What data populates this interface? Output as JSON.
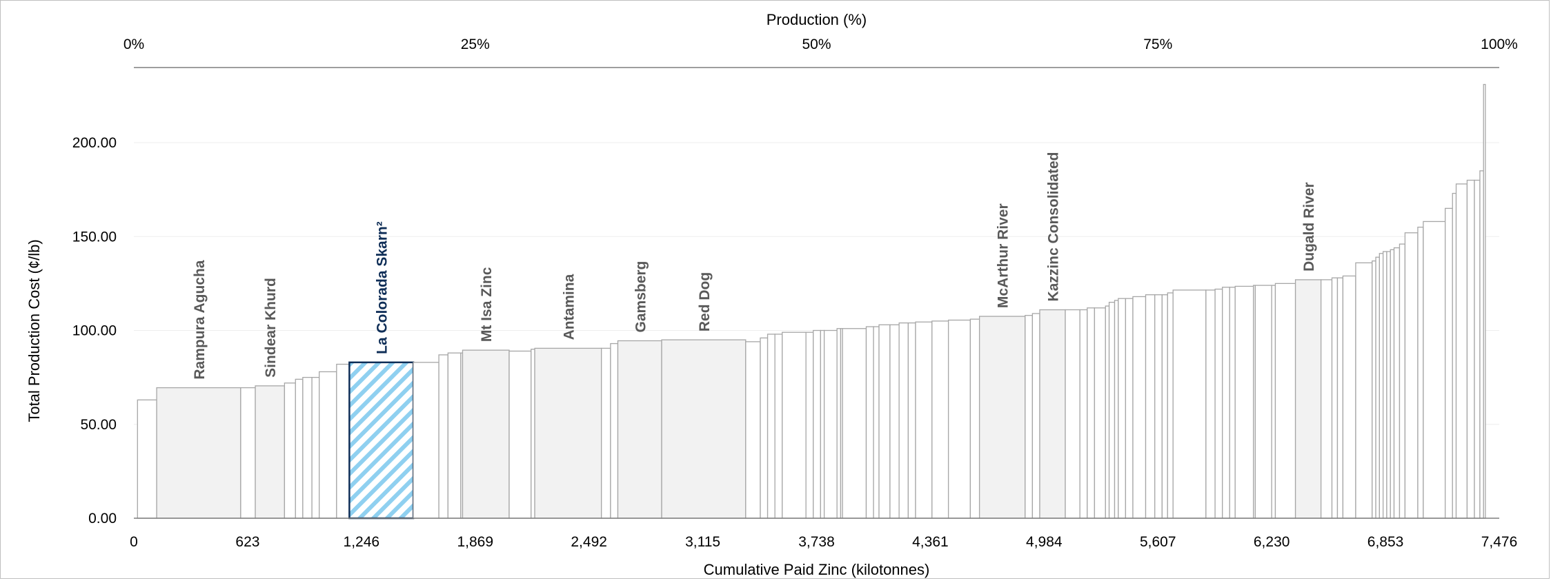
{
  "chart_data": {
    "type": "cost-curve",
    "title": "",
    "xlabel": "Cumulative Paid Zinc (kilotonnes)",
    "ylabel": "Total Production Cost (¢/lb)",
    "x2label": "Production (%)",
    "xlim": [
      0,
      7476
    ],
    "ylim": [
      0,
      240
    ],
    "x_ticks": [
      "0",
      "623",
      "1,246",
      "1,869",
      "2,492",
      "3,115",
      "3,738",
      "4,361",
      "4,984",
      "5,607",
      "6,230",
      "6,853",
      "7,476"
    ],
    "x_tick_values": [
      0,
      623,
      1246,
      1869,
      2492,
      3115,
      3738,
      4361,
      4984,
      5607,
      6230,
      6853,
      7476
    ],
    "y_ticks": [
      "0.00",
      "50.00",
      "100.00",
      "150.00",
      "200.00"
    ],
    "y_tick_values": [
      0,
      50,
      100,
      150,
      200
    ],
    "x2_ticks": [
      "0%",
      "25%",
      "50%",
      "75%",
      "100%"
    ],
    "x2_tick_values": [
      0,
      1869,
      3738,
      5607,
      7476
    ],
    "colors": {
      "bar_edge": "#a6a6a6",
      "bar_fill": "#ffffff",
      "named_fill": "#f2f2f2",
      "highlight_edge": "#0f2e57",
      "highlight_stripe": "#8fd0f0",
      "grid": "#ededed"
    },
    "bars": [
      {
        "start": 20,
        "end": 125,
        "cost": 63
      },
      {
        "start": 125,
        "end": 585,
        "cost": 69.5,
        "label": "Rampura Agucha"
      },
      {
        "start": 585,
        "end": 665,
        "cost": 69.5
      },
      {
        "start": 665,
        "end": 825,
        "cost": 70.5,
        "label": "Sindear Khurd"
      },
      {
        "start": 825,
        "end": 885,
        "cost": 72
      },
      {
        "start": 885,
        "end": 925,
        "cost": 74
      },
      {
        "start": 925,
        "end": 975,
        "cost": 75
      },
      {
        "start": 975,
        "end": 1015,
        "cost": 75
      },
      {
        "start": 1015,
        "end": 1110,
        "cost": 78
      },
      {
        "start": 1110,
        "end": 1180,
        "cost": 82
      },
      {
        "start": 1180,
        "end": 1530,
        "cost": 83,
        "label": "La Colorada Skarn²",
        "highlight": true
      },
      {
        "start": 1530,
        "end": 1670,
        "cost": 83
      },
      {
        "start": 1670,
        "end": 1720,
        "cost": 87
      },
      {
        "start": 1720,
        "end": 1790,
        "cost": 88
      },
      {
        "start": 1790,
        "end": 1800,
        "cost": 88
      },
      {
        "start": 1800,
        "end": 2055,
        "cost": 89.5,
        "label": "Mt Isa Zinc"
      },
      {
        "start": 2055,
        "end": 2175,
        "cost": 89
      },
      {
        "start": 2175,
        "end": 2195,
        "cost": 90
      },
      {
        "start": 2195,
        "end": 2560,
        "cost": 90.5,
        "label": "Antamina"
      },
      {
        "start": 2560,
        "end": 2610,
        "cost": 90.5
      },
      {
        "start": 2610,
        "end": 2650,
        "cost": 93
      },
      {
        "start": 2650,
        "end": 2890,
        "cost": 94.5,
        "label": "Gamsberg"
      },
      {
        "start": 2890,
        "end": 3350,
        "cost": 95,
        "label": "Red Dog"
      },
      {
        "start": 3350,
        "end": 3430,
        "cost": 94
      },
      {
        "start": 3430,
        "end": 3470,
        "cost": 96
      },
      {
        "start": 3470,
        "end": 3510,
        "cost": 98
      },
      {
        "start": 3510,
        "end": 3550,
        "cost": 98
      },
      {
        "start": 3550,
        "end": 3680,
        "cost": 99
      },
      {
        "start": 3680,
        "end": 3720,
        "cost": 99
      },
      {
        "start": 3720,
        "end": 3760,
        "cost": 100
      },
      {
        "start": 3760,
        "end": 3780,
        "cost": 100
      },
      {
        "start": 3780,
        "end": 3850,
        "cost": 100
      },
      {
        "start": 3850,
        "end": 3870,
        "cost": 101
      },
      {
        "start": 3870,
        "end": 3880,
        "cost": 101
      },
      {
        "start": 3880,
        "end": 4010,
        "cost": 101
      },
      {
        "start": 4010,
        "end": 4050,
        "cost": 102
      },
      {
        "start": 4050,
        "end": 4080,
        "cost": 102
      },
      {
        "start": 4080,
        "end": 4140,
        "cost": 103
      },
      {
        "start": 4140,
        "end": 4190,
        "cost": 103
      },
      {
        "start": 4190,
        "end": 4240,
        "cost": 104
      },
      {
        "start": 4240,
        "end": 4280,
        "cost": 104
      },
      {
        "start": 4280,
        "end": 4370,
        "cost": 104.5
      },
      {
        "start": 4370,
        "end": 4460,
        "cost": 105
      },
      {
        "start": 4460,
        "end": 4580,
        "cost": 105.5
      },
      {
        "start": 4580,
        "end": 4630,
        "cost": 106
      },
      {
        "start": 4630,
        "end": 4880,
        "cost": 107.5,
        "label": "McArthur River"
      },
      {
        "start": 4880,
        "end": 4920,
        "cost": 108
      },
      {
        "start": 4920,
        "end": 4960,
        "cost": 109
      },
      {
        "start": 4960,
        "end": 5100,
        "cost": 111,
        "label": "Kazzinc Consolidated"
      },
      {
        "start": 5100,
        "end": 5180,
        "cost": 111
      },
      {
        "start": 5180,
        "end": 5220,
        "cost": 111
      },
      {
        "start": 5220,
        "end": 5260,
        "cost": 112
      },
      {
        "start": 5260,
        "end": 5320,
        "cost": 112
      },
      {
        "start": 5320,
        "end": 5340,
        "cost": 113
      },
      {
        "start": 5340,
        "end": 5370,
        "cost": 115
      },
      {
        "start": 5370,
        "end": 5390,
        "cost": 116
      },
      {
        "start": 5390,
        "end": 5430,
        "cost": 117
      },
      {
        "start": 5430,
        "end": 5470,
        "cost": 117
      },
      {
        "start": 5470,
        "end": 5540,
        "cost": 118
      },
      {
        "start": 5540,
        "end": 5590,
        "cost": 119
      },
      {
        "start": 5590,
        "end": 5630,
        "cost": 119
      },
      {
        "start": 5630,
        "end": 5660,
        "cost": 119
      },
      {
        "start": 5660,
        "end": 5690,
        "cost": 120
      },
      {
        "start": 5690,
        "end": 5870,
        "cost": 121.5
      },
      {
        "start": 5870,
        "end": 5920,
        "cost": 121.5
      },
      {
        "start": 5920,
        "end": 5960,
        "cost": 122
      },
      {
        "start": 5960,
        "end": 6000,
        "cost": 123
      },
      {
        "start": 6000,
        "end": 6030,
        "cost": 123
      },
      {
        "start": 6030,
        "end": 6130,
        "cost": 123.5
      },
      {
        "start": 6130,
        "end": 6140,
        "cost": 124
      },
      {
        "start": 6140,
        "end": 6230,
        "cost": 124
      },
      {
        "start": 6230,
        "end": 6250,
        "cost": 124
      },
      {
        "start": 6250,
        "end": 6360,
        "cost": 125
      },
      {
        "start": 6360,
        "end": 6500,
        "cost": 127,
        "label": "Dugald River"
      },
      {
        "start": 6500,
        "end": 6560,
        "cost": 127
      },
      {
        "start": 6560,
        "end": 6590,
        "cost": 128
      },
      {
        "start": 6590,
        "end": 6620,
        "cost": 128
      },
      {
        "start": 6620,
        "end": 6690,
        "cost": 129
      },
      {
        "start": 6690,
        "end": 6780,
        "cost": 136
      },
      {
        "start": 6780,
        "end": 6800,
        "cost": 137
      },
      {
        "start": 6800,
        "end": 6820,
        "cost": 139
      },
      {
        "start": 6820,
        "end": 6840,
        "cost": 141
      },
      {
        "start": 6840,
        "end": 6860,
        "cost": 142
      },
      {
        "start": 6860,
        "end": 6880,
        "cost": 142
      },
      {
        "start": 6880,
        "end": 6900,
        "cost": 143
      },
      {
        "start": 6900,
        "end": 6930,
        "cost": 144
      },
      {
        "start": 6930,
        "end": 6960,
        "cost": 146
      },
      {
        "start": 6960,
        "end": 7030,
        "cost": 152
      },
      {
        "start": 7030,
        "end": 7060,
        "cost": 155
      },
      {
        "start": 7060,
        "end": 7180,
        "cost": 158
      },
      {
        "start": 7180,
        "end": 7220,
        "cost": 165
      },
      {
        "start": 7220,
        "end": 7240,
        "cost": 173
      },
      {
        "start": 7240,
        "end": 7300,
        "cost": 178
      },
      {
        "start": 7300,
        "end": 7340,
        "cost": 180
      },
      {
        "start": 7340,
        "end": 7370,
        "cost": 180
      },
      {
        "start": 7370,
        "end": 7390,
        "cost": 185
      },
      {
        "start": 7390,
        "end": 7400,
        "cost": 231
      }
    ]
  }
}
